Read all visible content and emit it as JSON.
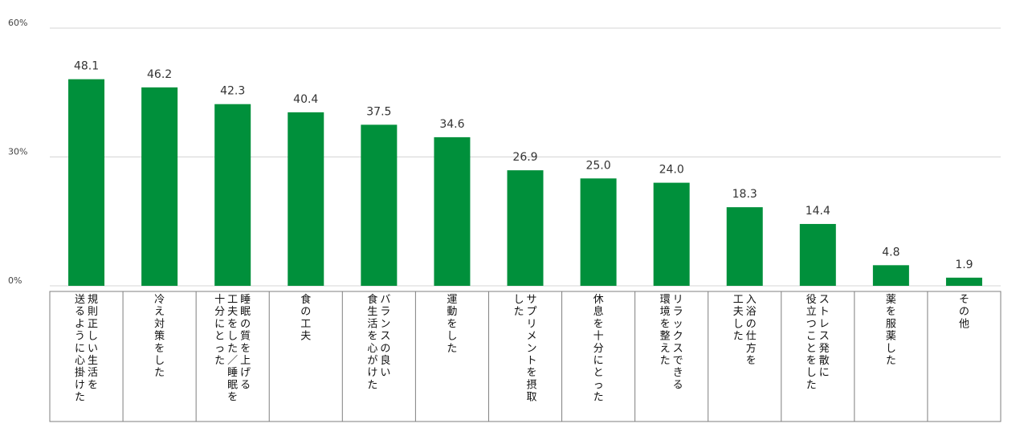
{
  "chart_data": {
    "type": "bar",
    "title": "",
    "xlabel": "",
    "ylabel": "",
    "ylim": [
      0,
      60
    ],
    "y_ticks": [
      {
        "value": 0,
        "label": "0%"
      },
      {
        "value": 30,
        "label": "30%"
      },
      {
        "value": 60,
        "label": "60%"
      }
    ],
    "grid": true,
    "legend": "none",
    "bar_color": "#00903b",
    "categories": [
      {
        "lines": [
          "規則正しい生活を",
          "送るように心掛けた"
        ]
      },
      {
        "lines": [
          "冷え対策をした"
        ]
      },
      {
        "lines": [
          "睡眠の質を上げる",
          "工夫をした／睡眠を",
          "十分にとった"
        ]
      },
      {
        "lines": [
          "食の工夫"
        ]
      },
      {
        "lines": [
          "バランスの良い",
          "食生活を心がけた"
        ]
      },
      {
        "lines": [
          "運動をした"
        ]
      },
      {
        "lines": [
          "サプリメントを摂取",
          "した"
        ]
      },
      {
        "lines": [
          "休息を十分にとった"
        ]
      },
      {
        "lines": [
          "リラックスできる",
          "環境を整えた"
        ]
      },
      {
        "lines": [
          "入浴の仕方を",
          "工夫した"
        ]
      },
      {
        "lines": [
          "ストレス発散に",
          "役立つことをした"
        ]
      },
      {
        "lines": [
          "薬を服薬した"
        ]
      },
      {
        "lines": [
          "その他"
        ]
      }
    ],
    "values": [
      48.1,
      46.2,
      42.3,
      40.4,
      37.5,
      34.6,
      26.9,
      25.0,
      24.0,
      18.3,
      14.4,
      4.8,
      1.9
    ],
    "value_labels": [
      "48.1",
      "46.2",
      "42.3",
      "40.4",
      "37.5",
      "34.6",
      "26.9",
      "25.0",
      "24.0",
      "18.3",
      "14.4",
      "4.8",
      "1.9"
    ]
  }
}
